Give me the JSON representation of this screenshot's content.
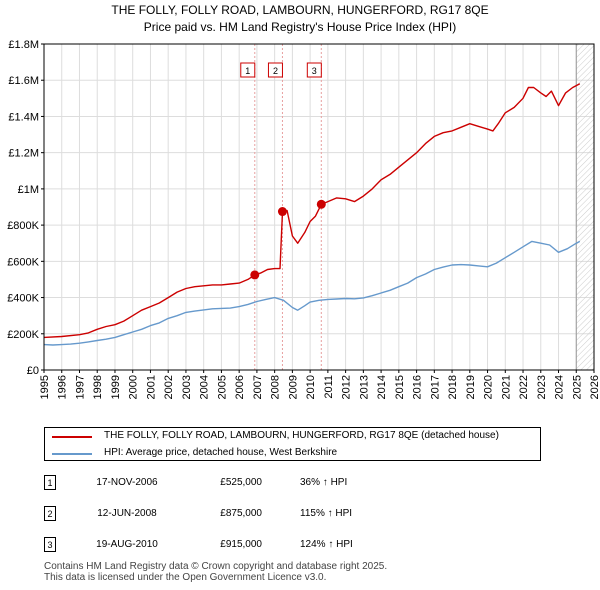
{
  "chart_data": {
    "type": "line",
    "title": "THE FOLLY, FOLLY ROAD, LAMBOURN, HUNGERFORD, RG17 8QE",
    "subtitle": "Price paid vs. HM Land Registry's House Price Index (HPI)",
    "xlim": [
      1995,
      2026
    ],
    "ylim": [
      0,
      1800000
    ],
    "x_ticks": [
      "1995",
      "1996",
      "1997",
      "1998",
      "1999",
      "2000",
      "2001",
      "2002",
      "2003",
      "2004",
      "2005",
      "2006",
      "2007",
      "2008",
      "2009",
      "2010",
      "2011",
      "2012",
      "2013",
      "2014",
      "2015",
      "2016",
      "2017",
      "2018",
      "2019",
      "2020",
      "2021",
      "2022",
      "2023",
      "2024",
      "2025",
      "2026"
    ],
    "y_ticks": [
      {
        "value": 0,
        "label": "£0"
      },
      {
        "value": 200000,
        "label": "£200K"
      },
      {
        "value": 400000,
        "label": "£400K"
      },
      {
        "value": 600000,
        "label": "£600K"
      },
      {
        "value": 800000,
        "label": "£800K"
      },
      {
        "value": 1000000,
        "label": "£1M"
      },
      {
        "value": 1200000,
        "label": "£1.2M"
      },
      {
        "value": 1400000,
        "label": "£1.4M"
      },
      {
        "value": 1600000,
        "label": "£1.6M"
      },
      {
        "value": 1800000,
        "label": "£1.8M"
      }
    ],
    "grid": true,
    "forecast_start": 2025.0,
    "series": [
      {
        "name": "THE FOLLY, FOLLY ROAD, LAMBOURN, HUNGERFORD, RG17 8QE (detached house)",
        "color": "#cc0000",
        "x": [
          1995.0,
          1996.0,
          1997.0,
          1997.5,
          1998.0,
          1998.5,
          1999.0,
          1999.5,
          2000.0,
          2000.5,
          2001.0,
          2001.5,
          2002.0,
          2002.5,
          2003.0,
          2003.5,
          2004.0,
          2004.5,
          2005.0,
          2005.5,
          2006.0,
          2006.5,
          2006.88,
          2007.2,
          2007.6,
          2008.0,
          2008.3,
          2008.44,
          2008.7,
          2009.0,
          2009.3,
          2009.7,
          2010.0,
          2010.3,
          2010.63,
          2011.0,
          2011.5,
          2012.0,
          2012.5,
          2013.0,
          2013.5,
          2014.0,
          2014.5,
          2015.0,
          2015.5,
          2016.0,
          2016.5,
          2017.0,
          2017.5,
          2018.0,
          2018.5,
          2019.0,
          2019.5,
          2020.0,
          2020.3,
          2020.6,
          2021.0,
          2021.5,
          2022.0,
          2022.3,
          2022.6,
          2023.0,
          2023.3,
          2023.6,
          2024.0,
          2024.4,
          2024.8,
          2025.2
        ],
        "values": [
          180000,
          185000,
          195000,
          205000,
          225000,
          240000,
          250000,
          270000,
          300000,
          330000,
          350000,
          370000,
          400000,
          430000,
          450000,
          460000,
          465000,
          470000,
          470000,
          475000,
          480000,
          500000,
          525000,
          535000,
          555000,
          560000,
          560000,
          875000,
          880000,
          740000,
          700000,
          760000,
          820000,
          850000,
          915000,
          930000,
          950000,
          945000,
          930000,
          960000,
          1000000,
          1050000,
          1080000,
          1120000,
          1160000,
          1200000,
          1250000,
          1290000,
          1310000,
          1320000,
          1340000,
          1360000,
          1345000,
          1330000,
          1320000,
          1360000,
          1420000,
          1450000,
          1500000,
          1560000,
          1560000,
          1530000,
          1510000,
          1540000,
          1460000,
          1530000,
          1560000,
          1580000
        ]
      },
      {
        "name": "HPI: Average price, detached house, West Berkshire",
        "color": "#6699cc",
        "x": [
          1995.0,
          1995.5,
          1996.0,
          1996.5,
          1997.0,
          1997.5,
          1998.0,
          1998.5,
          1999.0,
          1999.5,
          2000.0,
          2000.5,
          2001.0,
          2001.5,
          2002.0,
          2002.5,
          2003.0,
          2003.5,
          2004.0,
          2004.5,
          2005.0,
          2005.5,
          2006.0,
          2006.5,
          2007.0,
          2007.5,
          2008.0,
          2008.5,
          2009.0,
          2009.3,
          2009.7,
          2010.0,
          2010.5,
          2011.0,
          2011.5,
          2012.0,
          2012.5,
          2013.0,
          2013.5,
          2014.0,
          2014.5,
          2015.0,
          2015.5,
          2016.0,
          2016.5,
          2017.0,
          2017.5,
          2018.0,
          2018.5,
          2019.0,
          2019.5,
          2020.0,
          2020.5,
          2021.0,
          2021.5,
          2022.0,
          2022.5,
          2023.0,
          2023.5,
          2024.0,
          2024.5,
          2025.0,
          2025.2
        ],
        "values": [
          140000,
          138000,
          140000,
          143000,
          148000,
          155000,
          163000,
          170000,
          180000,
          195000,
          210000,
          225000,
          245000,
          260000,
          285000,
          300000,
          318000,
          325000,
          332000,
          338000,
          340000,
          342000,
          350000,
          362000,
          378000,
          390000,
          400000,
          385000,
          345000,
          330000,
          355000,
          375000,
          385000,
          390000,
          392000,
          395000,
          393000,
          398000,
          410000,
          425000,
          440000,
          460000,
          480000,
          510000,
          530000,
          555000,
          568000,
          580000,
          582000,
          580000,
          575000,
          570000,
          590000,
          620000,
          650000,
          680000,
          710000,
          700000,
          690000,
          650000,
          670000,
          700000,
          710000
        ]
      }
    ],
    "transactions": [
      {
        "num": "1",
        "x": 2006.88,
        "value": 525000
      },
      {
        "num": "2",
        "x": 2008.44,
        "value": 875000
      },
      {
        "num": "3",
        "x": 2010.63,
        "value": 915000
      }
    ]
  },
  "legend": {
    "property_label": "THE FOLLY, FOLLY ROAD, LAMBOURN, HUNGERFORD, RG17 8QE (detached house)",
    "hpi_label": "HPI: Average price, detached house, West Berkshire",
    "property_color": "#cc0000",
    "hpi_color": "#6699cc"
  },
  "table": [
    {
      "num": "1",
      "date": "17-NOV-2006",
      "price": "£525,000",
      "hpi": "36% ↑ HPI"
    },
    {
      "num": "2",
      "date": "12-JUN-2008",
      "price": "£875,000",
      "hpi": "115% ↑ HPI"
    },
    {
      "num": "3",
      "date": "19-AUG-2010",
      "price": "£915,000",
      "hpi": "124% ↑ HPI"
    }
  ],
  "footer": {
    "line1": "Contains HM Land Registry data © Crown copyright and database right 2025.",
    "line2": "This data is licensed under the Open Government Licence v3.0."
  }
}
